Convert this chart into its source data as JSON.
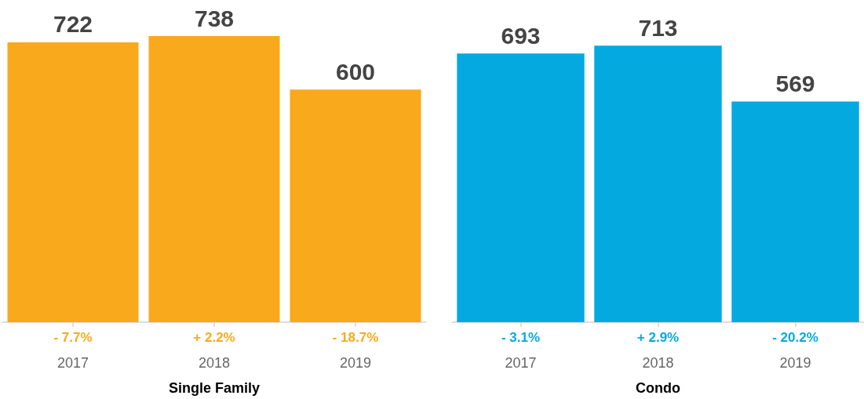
{
  "chart_data": [
    {
      "type": "bar",
      "categories": [
        "2017",
        "2018",
        "2019"
      ],
      "values": [
        722,
        738,
        600
      ],
      "color": "#f9a91c",
      "xlabel": "Single Family",
      "data_labels": true,
      "annotations": [
        "- 7.7%",
        "+ 2.2%",
        "- 18.7%"
      ]
    },
    {
      "type": "bar",
      "categories": [
        "2017",
        "2018",
        "2019"
      ],
      "values": [
        693,
        713,
        569
      ],
      "color": "#04a9e0",
      "xlabel": "Condo",
      "data_labels": true,
      "annotations": [
        "- 3.1%",
        "+ 2.9%",
        "- 20.2%"
      ]
    }
  ]
}
